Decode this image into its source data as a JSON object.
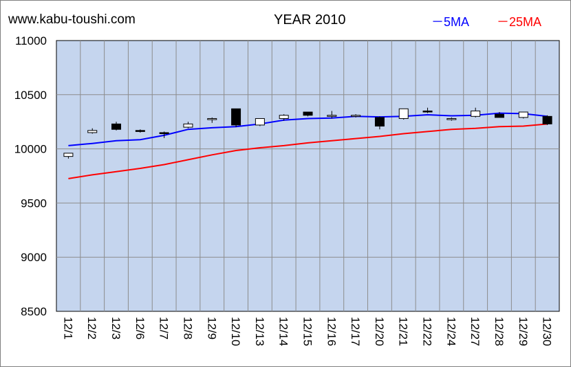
{
  "header": {
    "site": "www.kabu-toushi.com",
    "title": "YEAR 2010"
  },
  "chart_data": {
    "type": "candlestick",
    "title": "YEAR 2010",
    "categories": [
      "12/1",
      "12/2",
      "12/3",
      "12/6",
      "12/7",
      "12/8",
      "12/9",
      "12/10",
      "12/13",
      "12/14",
      "12/15",
      "12/16",
      "12/17",
      "12/20",
      "12/21",
      "12/22",
      "12/24",
      "12/27",
      "12/28",
      "12/29",
      "12/30"
    ],
    "candles": [
      {
        "open": 9930,
        "high": 9960,
        "low": 9910,
        "close": 9960
      },
      {
        "open": 10150,
        "high": 10190,
        "low": 10140,
        "close": 10170
      },
      {
        "open": 10230,
        "high": 10250,
        "low": 10170,
        "close": 10180
      },
      {
        "open": 10170,
        "high": 10180,
        "low": 10150,
        "close": 10160
      },
      {
        "open": 10150,
        "high": 10160,
        "low": 10100,
        "close": 10140
      },
      {
        "open": 10200,
        "high": 10250,
        "low": 10190,
        "close": 10230
      },
      {
        "open": 10270,
        "high": 10290,
        "low": 10240,
        "close": 10280
      },
      {
        "open": 10370,
        "high": 10370,
        "low": 10200,
        "close": 10220
      },
      {
        "open": 10220,
        "high": 10280,
        "low": 10210,
        "close": 10280
      },
      {
        "open": 10280,
        "high": 10320,
        "low": 10260,
        "close": 10310
      },
      {
        "open": 10340,
        "high": 10340,
        "low": 10300,
        "close": 10310
      },
      {
        "open": 10300,
        "high": 10350,
        "low": 10280,
        "close": 10310
      },
      {
        "open": 10300,
        "high": 10320,
        "low": 10290,
        "close": 10310
      },
      {
        "open": 10290,
        "high": 10300,
        "low": 10180,
        "close": 10210
      },
      {
        "open": 10280,
        "high": 10370,
        "low": 10270,
        "close": 10370
      },
      {
        "open": 10350,
        "high": 10380,
        "low": 10330,
        "close": 10340
      },
      {
        "open": 10270,
        "high": 10290,
        "low": 10260,
        "close": 10280
      },
      {
        "open": 10300,
        "high": 10380,
        "low": 10290,
        "close": 10350
      },
      {
        "open": 10320,
        "high": 10340,
        "low": 10290,
        "close": 10290
      },
      {
        "open": 10290,
        "high": 10340,
        "low": 10280,
        "close": 10340
      },
      {
        "open": 10300,
        "high": 10310,
        "low": 10220,
        "close": 10230
      }
    ],
    "series": [
      {
        "name": "5MA",
        "color": "#0000ff",
        "values": [
          10030,
          10050,
          10075,
          10085,
          10125,
          10180,
          10195,
          10205,
          10230,
          10265,
          10280,
          10285,
          10300,
          10295,
          10300,
          10315,
          10305,
          10310,
          10330,
          10325,
          10300
        ]
      },
      {
        "name": "25MA",
        "color": "#ff0000",
        "values": [
          9725,
          9760,
          9790,
          9820,
          9855,
          9900,
          9945,
          9985,
          10010,
          10030,
          10055,
          10075,
          10095,
          10115,
          10140,
          10160,
          10180,
          10190,
          10205,
          10210,
          10230
        ]
      }
    ],
    "legend": {
      "labels": [
        "－5MA",
        "－25MA"
      ],
      "placement": "top-right"
    },
    "ylim": [
      8500,
      11000
    ],
    "yticks": [
      8500,
      9000,
      9500,
      10000,
      10500,
      11000
    ],
    "grid": true,
    "colors": {
      "plot_bg": "#c5d5ee",
      "up_body": "#ffffff",
      "down_body": "#000000",
      "ma5": "#0000ff",
      "ma25": "#ff0000"
    }
  }
}
